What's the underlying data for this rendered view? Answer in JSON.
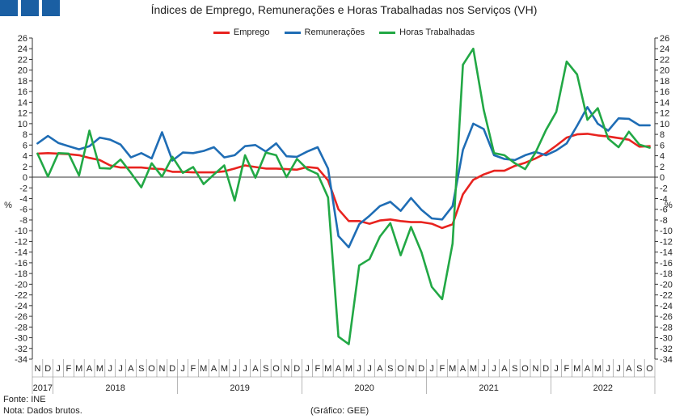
{
  "title": "Índices de Emprego, Remunerações e Horas Trabalhadas nos Serviços (VH)",
  "legend": [
    {
      "label": "Emprego",
      "color": "#e8231f"
    },
    {
      "label": "Remunerações",
      "color": "#1f6db5"
    },
    {
      "label": "Horas Trabalhadas",
      "color": "#22a845"
    }
  ],
  "footer": {
    "source": "Fonte: INE",
    "note": "Nota: Dados brutos.",
    "graph_credit": "(Gráfico: GEE)"
  },
  "chart_data": {
    "type": "line",
    "ylabel_left": "%",
    "ylabel_right": "%",
    "ylim": [
      -34,
      26
    ],
    "ytick_step": 2,
    "grid": false,
    "legend_position": "top-center",
    "x": [
      "N",
      "D",
      "J",
      "F",
      "M",
      "A",
      "M",
      "J",
      "J",
      "A",
      "S",
      "O",
      "N",
      "D",
      "J",
      "F",
      "M",
      "A",
      "M",
      "J",
      "J",
      "A",
      "S",
      "O",
      "N",
      "D",
      "J",
      "F",
      "M",
      "A",
      "M",
      "J",
      "J",
      "A",
      "S",
      "O",
      "N",
      "D",
      "J",
      "F",
      "M",
      "A",
      "M",
      "J",
      "J",
      "A",
      "S",
      "O",
      "N",
      "D",
      "J",
      "F",
      "M",
      "A",
      "M",
      "J",
      "J",
      "A",
      "S",
      "O"
    ],
    "years": [
      {
        "label": "2017",
        "start": 0,
        "end": 1
      },
      {
        "label": "2018",
        "start": 2,
        "end": 13
      },
      {
        "label": "2019",
        "start": 14,
        "end": 25
      },
      {
        "label": "2020",
        "start": 26,
        "end": 37
      },
      {
        "label": "2021",
        "start": 38,
        "end": 49
      },
      {
        "label": "2022",
        "start": 50,
        "end": 59
      }
    ],
    "series": [
      {
        "name": "Emprego",
        "color": "#e8231f",
        "values": [
          4.4,
          4.5,
          4.4,
          4.3,
          4.1,
          3.6,
          3.2,
          2.2,
          1.8,
          1.8,
          1.8,
          1.6,
          1.5,
          1.0,
          1.0,
          0.9,
          0.9,
          0.9,
          1.1,
          1.6,
          2.2,
          1.9,
          1.6,
          1.6,
          1.5,
          1.4,
          1.9,
          1.7,
          -0.6,
          -6.0,
          -8.2,
          -8.2,
          -8.7,
          -8.1,
          -7.9,
          -8.2,
          -8.4,
          -8.4,
          -8.7,
          -9.5,
          -8.8,
          -3.2,
          -0.5,
          0.5,
          1.2,
          1.2,
          2.1,
          2.7,
          3.5,
          4.5,
          5.9,
          7.4,
          8.0,
          8.1,
          7.8,
          7.6,
          7.3,
          7.0,
          5.7,
          5.8
        ]
      },
      {
        "name": "Remunerações",
        "color": "#1f6db5",
        "values": [
          6.3,
          7.7,
          6.4,
          5.8,
          5.2,
          5.8,
          7.4,
          7.0,
          6.1,
          3.7,
          4.5,
          3.5,
          8.4,
          3.1,
          4.6,
          4.5,
          4.9,
          5.6,
          3.7,
          4.1,
          5.8,
          6.0,
          4.8,
          6.3,
          3.9,
          3.8,
          4.8,
          5.6,
          1.6,
          -11.0,
          -13.1,
          -8.8,
          -7.2,
          -5.4,
          -4.6,
          -6.3,
          -3.9,
          -6.1,
          -7.7,
          -7.9,
          -5.4,
          5.1,
          10.0,
          9.0,
          4.1,
          3.4,
          3.2,
          4.1,
          4.7,
          4.1,
          5.0,
          6.3,
          9.6,
          13.1,
          10.0,
          8.7,
          11.0,
          10.9,
          9.7,
          9.7
        ]
      },
      {
        "name": "Horas Trabalhadas",
        "color": "#22a845",
        "values": [
          4.4,
          0.1,
          4.5,
          4.4,
          0.3,
          8.7,
          1.7,
          1.6,
          3.3,
          0.8,
          -1.9,
          2.6,
          0.1,
          3.8,
          0.8,
          1.9,
          -1.3,
          0.5,
          2.2,
          -4.4,
          4.1,
          -0.1,
          4.6,
          4.1,
          0.0,
          3.4,
          1.5,
          0.6,
          -3.8,
          -29.8,
          -31.2,
          -16.5,
          -15.3,
          -11.1,
          -8.6,
          -14.6,
          -9.3,
          -14.0,
          -20.5,
          -22.8,
          -12.4,
          21.0,
          24.0,
          12.6,
          4.5,
          4.1,
          2.6,
          1.5,
          4.6,
          8.8,
          12.2,
          21.6,
          19.2,
          10.7,
          12.9,
          7.2,
          5.6,
          8.5,
          6.1,
          5.5
        ]
      }
    ]
  }
}
